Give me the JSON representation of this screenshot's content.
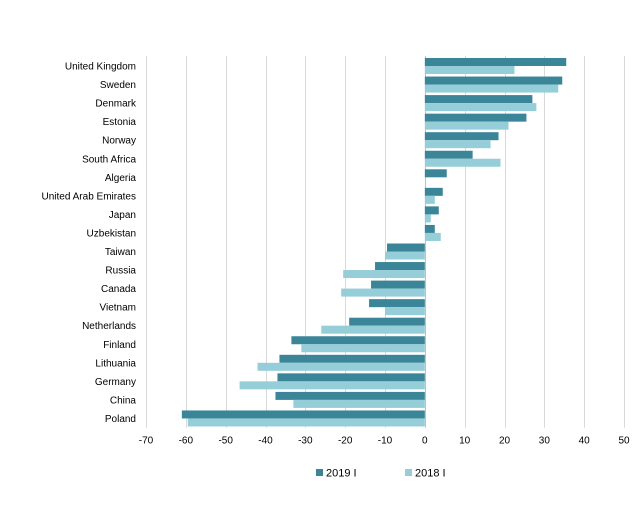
{
  "chart_data": {
    "type": "bar",
    "orientation": "horizontal",
    "categories": [
      "United Kingdom",
      "Sweden",
      "Denmark",
      "Estonia",
      "Norway",
      "South Africa",
      "Algeria",
      "United Arab Emirates",
      "Japan",
      "Uzbekistan",
      "Taiwan",
      "Russia",
      "Canada",
      "Vietnam",
      "Netherlands",
      "Finland",
      "Lithuania",
      "Germany",
      "China",
      "Poland"
    ],
    "series": [
      {
        "name": "2019 I",
        "color": "#3a8597",
        "values": [
          35.5,
          34.5,
          27,
          25.5,
          18.5,
          12,
          5.5,
          4.5,
          3.5,
          2.5,
          -9.5,
          -12.5,
          -13.5,
          -14,
          -19,
          -33.5,
          -36.5,
          -37,
          -37.5,
          -61
        ]
      },
      {
        "name": "2018 I",
        "color": "#95cdd9",
        "values": [
          22.5,
          33.5,
          28,
          21,
          16.5,
          19,
          0,
          2.5,
          1.5,
          4,
          -10,
          -20.5,
          -21,
          -10,
          -26,
          -31,
          -42,
          -46.5,
          -33,
          -59.5
        ]
      }
    ],
    "xlim": [
      -70,
      50
    ],
    "xticks": [
      "-70",
      "-60",
      "-50",
      "-40",
      "-30",
      "-20",
      "-10",
      "0",
      "10",
      "20",
      "30",
      "40",
      "50"
    ],
    "grid": "vertical",
    "legend": "bottom"
  }
}
